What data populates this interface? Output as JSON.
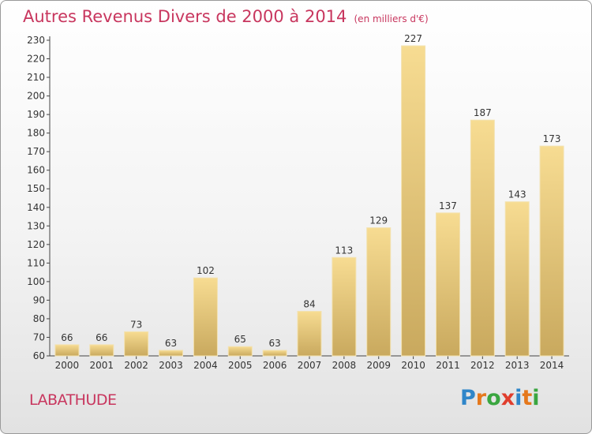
{
  "chart_data": {
    "type": "bar",
    "title": "Autres Revenus Divers de 2000 à 2014",
    "subtitle": "(en milliers d'€)",
    "categories": [
      "2000",
      "2001",
      "2002",
      "2003",
      "2004",
      "2005",
      "2006",
      "2007",
      "2008",
      "2009",
      "2010",
      "2011",
      "2012",
      "2013",
      "2014"
    ],
    "values": [
      66,
      66,
      73,
      63,
      102,
      65,
      63,
      84,
      113,
      129,
      227,
      137,
      187,
      143,
      173
    ],
    "ylim": [
      60,
      230
    ],
    "yticks": [
      60,
      70,
      80,
      90,
      100,
      110,
      120,
      130,
      140,
      150,
      160,
      170,
      180,
      190,
      200,
      210,
      220,
      230
    ],
    "grid": false,
    "data_labels": true,
    "bar_color": "#e8c97a"
  },
  "commune": "LABATHUDE",
  "logo": {
    "text": "Proxiti",
    "letters": [
      {
        "ch": "P",
        "color": "#2f86c9"
      },
      {
        "ch": "r",
        "color": "#e5781c"
      },
      {
        "ch": "o",
        "color": "#3aa640"
      },
      {
        "ch": "x",
        "color": "#e03e2d"
      },
      {
        "ch": "i",
        "color": "#2f86c9"
      },
      {
        "ch": "t",
        "color": "#e5781c"
      },
      {
        "ch": "i",
        "color": "#3aa640"
      }
    ]
  },
  "colors": {
    "title": "#c8365e",
    "axis": "#333333",
    "text": "#333333"
  }
}
